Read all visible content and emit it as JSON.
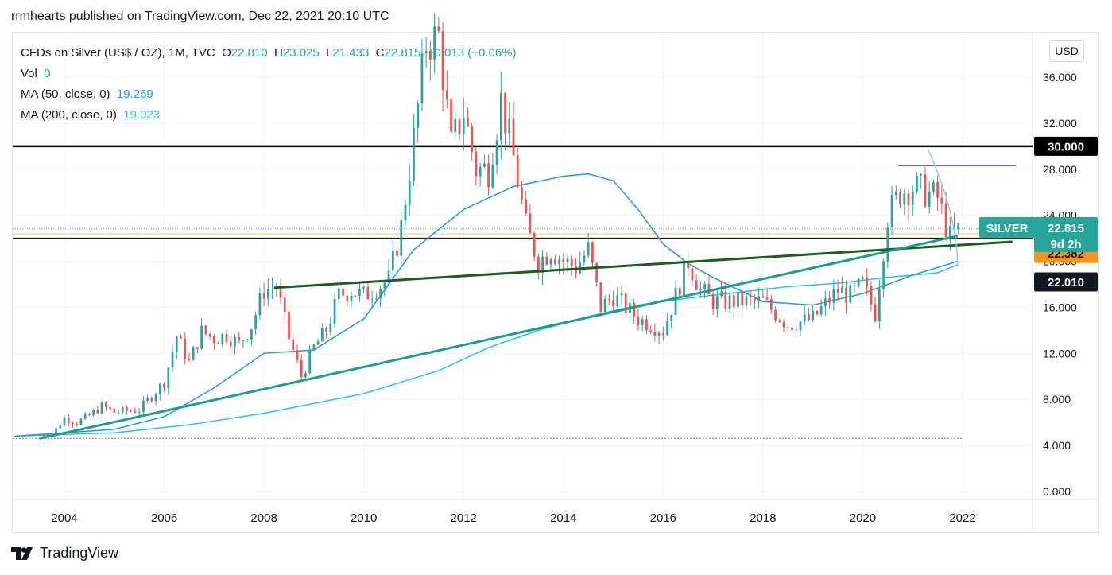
{
  "header": {
    "published": "rrmhearts published on TradingView.com, Dec 22, 2021 20:10 UTC"
  },
  "legend": {
    "symbol": "CFDs on Silver (US$ / OZ), 1M, TVC",
    "o_label": "O",
    "o_value": "22.810",
    "h_label": "H",
    "h_value": "23.025",
    "l_label": "L",
    "l_value": "21.433",
    "c_label": "C",
    "c_value": "22.815",
    "change": "+0.013 (+0.06%)",
    "vol_label": "Vol",
    "vol_value": "0",
    "ma50_label": "MA (50, close, 0)",
    "ma50_value": "19.269",
    "ma200_label": "MA (200, close, 0)",
    "ma200_value": "19.023"
  },
  "currency_button": "USD",
  "brand": {
    "name": "TradingView"
  },
  "colors": {
    "up": "#26a69a",
    "down": "#ef5350",
    "ma50": "#2196f3",
    "ma200": "#26c6da",
    "trend_dark": "#1b5e20",
    "trend_teal": "#1a9e8f",
    "price_label": "#26a69a",
    "level_orange": "#f7931a",
    "level_dark": "#131722"
  },
  "chart_data": {
    "type": "candlestick",
    "interval": "1M",
    "ylim": [
      0,
      40
    ],
    "xlim": [
      2003.0,
      2023.0
    ],
    "y_ticks": [
      "0.000",
      "4.000",
      "8.000",
      "12.000",
      "16.000",
      "20.000",
      "24.000",
      "28.000",
      "32.000",
      "36.000"
    ],
    "x_ticks": [
      "2004",
      "2006",
      "2008",
      "2010",
      "2012",
      "2014",
      "2016",
      "2018",
      "2020",
      "2022"
    ],
    "last_price": {
      "symbol": "SILVER",
      "price": "22.815",
      "countdown": "9d 2h",
      "value": 22.815
    },
    "levels": [
      {
        "label": "30.000",
        "value": 30.0,
        "style": "black"
      },
      {
        "label": "22.382",
        "value": 22.382,
        "style": "orange"
      },
      {
        "label": "22.010",
        "value": 22.01,
        "style": "dark"
      }
    ],
    "close_series": [
      [
        2003.5,
        4.9
      ],
      [
        2003.75,
        4.9
      ],
      [
        2004.0,
        6.4
      ],
      [
        2004.25,
        6.0
      ],
      [
        2004.5,
        6.6
      ],
      [
        2004.75,
        7.4
      ],
      [
        2005.0,
        6.9
      ],
      [
        2005.5,
        7.1
      ],
      [
        2006.0,
        9.5
      ],
      [
        2006.25,
        13.5
      ],
      [
        2006.5,
        11.2
      ],
      [
        2006.75,
        13.9
      ],
      [
        2007.0,
        13.3
      ],
      [
        2007.25,
        13.6
      ],
      [
        2007.5,
        12.8
      ],
      [
        2007.75,
        14.4
      ],
      [
        2008.0,
        17.5
      ],
      [
        2008.25,
        17.8
      ],
      [
        2008.5,
        13.3
      ],
      [
        2008.75,
        10.0
      ],
      [
        2009.0,
        12.5
      ],
      [
        2009.25,
        14.0
      ],
      [
        2009.5,
        17.0
      ],
      [
        2009.75,
        17.5
      ],
      [
        2010.0,
        17.0
      ],
      [
        2010.5,
        18.4
      ],
      [
        2010.75,
        23.0
      ],
      [
        2011.0,
        30.6
      ],
      [
        2011.25,
        39.0
      ],
      [
        2011.5,
        39.5
      ],
      [
        2011.75,
        30.0
      ],
      [
        2012.0,
        33.0
      ],
      [
        2012.25,
        28.0
      ],
      [
        2012.5,
        28.0
      ],
      [
        2012.75,
        34.0
      ],
      [
        2013.0,
        29.0
      ],
      [
        2013.25,
        23.0
      ],
      [
        2013.5,
        20.0
      ],
      [
        2013.75,
        21.0
      ],
      [
        2014.0,
        20.0
      ],
      [
        2014.25,
        19.5
      ],
      [
        2014.5,
        21.0
      ],
      [
        2014.75,
        16.0
      ],
      [
        2015.0,
        17.0
      ],
      [
        2015.5,
        15.0
      ],
      [
        2015.75,
        14.5
      ],
      [
        2016.0,
        14.0
      ],
      [
        2016.5,
        20.0
      ],
      [
        2016.75,
        17.5
      ],
      [
        2017.0,
        16.5
      ],
      [
        2017.5,
        16.5
      ],
      [
        2018.0,
        16.5
      ],
      [
        2018.5,
        14.5
      ],
      [
        2019.0,
        15.0
      ],
      [
        2019.5,
        17.5
      ],
      [
        2019.75,
        17.0
      ],
      [
        2020.0,
        18.0
      ],
      [
        2020.25,
        15.5
      ],
      [
        2020.5,
        24.0
      ],
      [
        2020.75,
        26.0
      ],
      [
        2021.0,
        26.5
      ],
      [
        2021.25,
        26.0
      ],
      [
        2021.5,
        25.5
      ],
      [
        2021.75,
        22.0
      ],
      [
        2021.95,
        22.8
      ]
    ],
    "ma50": [
      [
        2003.0,
        4.8
      ],
      [
        2005.0,
        5.4
      ],
      [
        2006.0,
        6.5
      ],
      [
        2007.0,
        9.0
      ],
      [
        2008.0,
        12.0
      ],
      [
        2009.0,
        12.3
      ],
      [
        2010.0,
        15.0
      ],
      [
        2011.0,
        21.0
      ],
      [
        2012.0,
        24.5
      ],
      [
        2013.0,
        26.5
      ],
      [
        2014.0,
        27.4
      ],
      [
        2014.5,
        27.6
      ],
      [
        2015.0,
        27.0
      ],
      [
        2015.5,
        24.5
      ],
      [
        2016.0,
        21.5
      ],
      [
        2016.5,
        19.8
      ],
      [
        2017.0,
        18.6
      ],
      [
        2018.0,
        16.5
      ],
      [
        2019.0,
        16.2
      ],
      [
        2020.0,
        17.2
      ],
      [
        2021.0,
        18.8
      ],
      [
        2021.9,
        20.0
      ]
    ],
    "ma200": [
      [
        2003.0,
        4.8
      ],
      [
        2005.0,
        5.1
      ],
      [
        2006.5,
        5.8
      ],
      [
        2008.0,
        6.8
      ],
      [
        2010.0,
        8.5
      ],
      [
        2011.5,
        10.5
      ],
      [
        2012.5,
        12.5
      ],
      [
        2013.5,
        14.0
      ],
      [
        2014.5,
        15.2
      ],
      [
        2015.5,
        16.2
      ],
      [
        2016.5,
        16.8
      ],
      [
        2017.5,
        17.3
      ],
      [
        2018.5,
        17.8
      ],
      [
        2019.5,
        18.1
      ],
      [
        2020.5,
        18.6
      ],
      [
        2021.5,
        19.0
      ],
      [
        2021.9,
        19.7
      ]
    ],
    "trend_lines": [
      {
        "name": "dark-trend",
        "p1": [
          2008.2,
          17.7
        ],
        "p2": [
          2023.0,
          21.7
        ]
      },
      {
        "name": "teal-trend",
        "p1": [
          2003.5,
          4.6
        ],
        "p2": [
          2021.9,
          22.2
        ]
      }
    ]
  }
}
